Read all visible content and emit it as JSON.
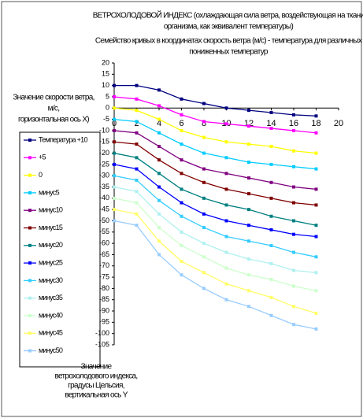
{
  "chart_data": {
    "type": "line",
    "title": [
      "ВЕТРОХОЛОДОВОЙ ИНДЕКС (охлаждающая сила ветра, воздействующая на ткани",
      "организма, как эквивалент температуры)"
    ],
    "subtitle": [
      "Семейство кривых в координатах скорость ветра (м/с) - температура для различных",
      "пониженных температур"
    ],
    "x_label": [
      "Значение скорости ветра,",
      "м/с,",
      "горизонтальная ось X)"
    ],
    "y_label": [
      "Значение",
      "ветрохолодового индекса,",
      "градусы Цельсия,",
      "вертикальная ось Y"
    ],
    "x": [
      0,
      2,
      4,
      6,
      8,
      10,
      12,
      14,
      16,
      18
    ],
    "xlim": [
      0,
      20
    ],
    "xticks": [
      0,
      2,
      4,
      6,
      8,
      10,
      12,
      14,
      16,
      18,
      20
    ],
    "ylim": [
      -105,
      20
    ],
    "yticks": [
      20,
      15,
      10,
      5,
      0,
      -5,
      -10,
      -15,
      -20,
      -25,
      -30,
      -35,
      -40,
      -45,
      -50,
      -55,
      -60,
      -65,
      -70,
      -75,
      -80,
      -85,
      -90,
      -95,
      -100,
      -105
    ],
    "series": [
      {
        "name": "Температура +10",
        "color": "#000080",
        "values": [
          10,
          10,
          8,
          4,
          2,
          0,
          -1,
          -2,
          -3,
          -3.5
        ]
      },
      {
        "name": "+5",
        "color": "#ff00ff",
        "values": [
          5,
          4,
          1,
          -3,
          -6,
          -7,
          -8,
          -9,
          -10,
          -11
        ]
      },
      {
        "name": "0",
        "color": "#ffff00",
        "values": [
          0,
          -1,
          -5,
          -10,
          -13,
          -15,
          -16,
          -17,
          -19,
          -20
        ]
      },
      {
        "name": "минус5",
        "color": "#00ccff",
        "values": [
          -5,
          -6,
          -11,
          -16,
          -20,
          -22,
          -24,
          -25,
          -26,
          -27
        ]
      },
      {
        "name": "минус10",
        "color": "#800080",
        "values": [
          -10,
          -11,
          -17,
          -23,
          -27,
          -29,
          -31,
          -33,
          -35,
          -36
        ]
      },
      {
        "name": "минус15",
        "color": "#800000",
        "values": [
          -15,
          -16,
          -23,
          -29,
          -33,
          -36,
          -38,
          -40,
          -42,
          -43
        ]
      },
      {
        "name": "минус20",
        "color": "#008080",
        "values": [
          -20,
          -22,
          -29,
          -36,
          -40,
          -43,
          -45,
          -48,
          -50,
          -52
        ]
      },
      {
        "name": "минус25",
        "color": "#0000ff",
        "values": [
          -25,
          -27,
          -35,
          -42,
          -47,
          -50,
          -52,
          -54,
          -56,
          -57
        ]
      },
      {
        "name": "минус30",
        "color": "#33ccff",
        "values": [
          -30,
          -32,
          -41,
          -48,
          -53,
          -57,
          -59,
          -61,
          -64,
          -66
        ]
      },
      {
        "name": "минус35",
        "color": "#b0f0f0",
        "values": [
          -35,
          -37,
          -47,
          -55,
          -60,
          -64,
          -67,
          -69,
          -72,
          -73
        ]
      },
      {
        "name": "минус40",
        "color": "#ccffcc",
        "values": [
          -40,
          -42,
          -53,
          -61,
          -66,
          -71,
          -74,
          -76,
          -79,
          -81
        ]
      },
      {
        "name": "минус45",
        "color": "#ffff66",
        "values": [
          -45,
          -47,
          -59,
          -68,
          -73,
          -78,
          -81,
          -84,
          -88,
          -91
        ]
      },
      {
        "name": "минус50",
        "color": "#99ccff",
        "values": [
          -50,
          -52,
          -65,
          -74,
          -80,
          -85,
          -88,
          -92,
          -96,
          -98
        ]
      }
    ]
  }
}
